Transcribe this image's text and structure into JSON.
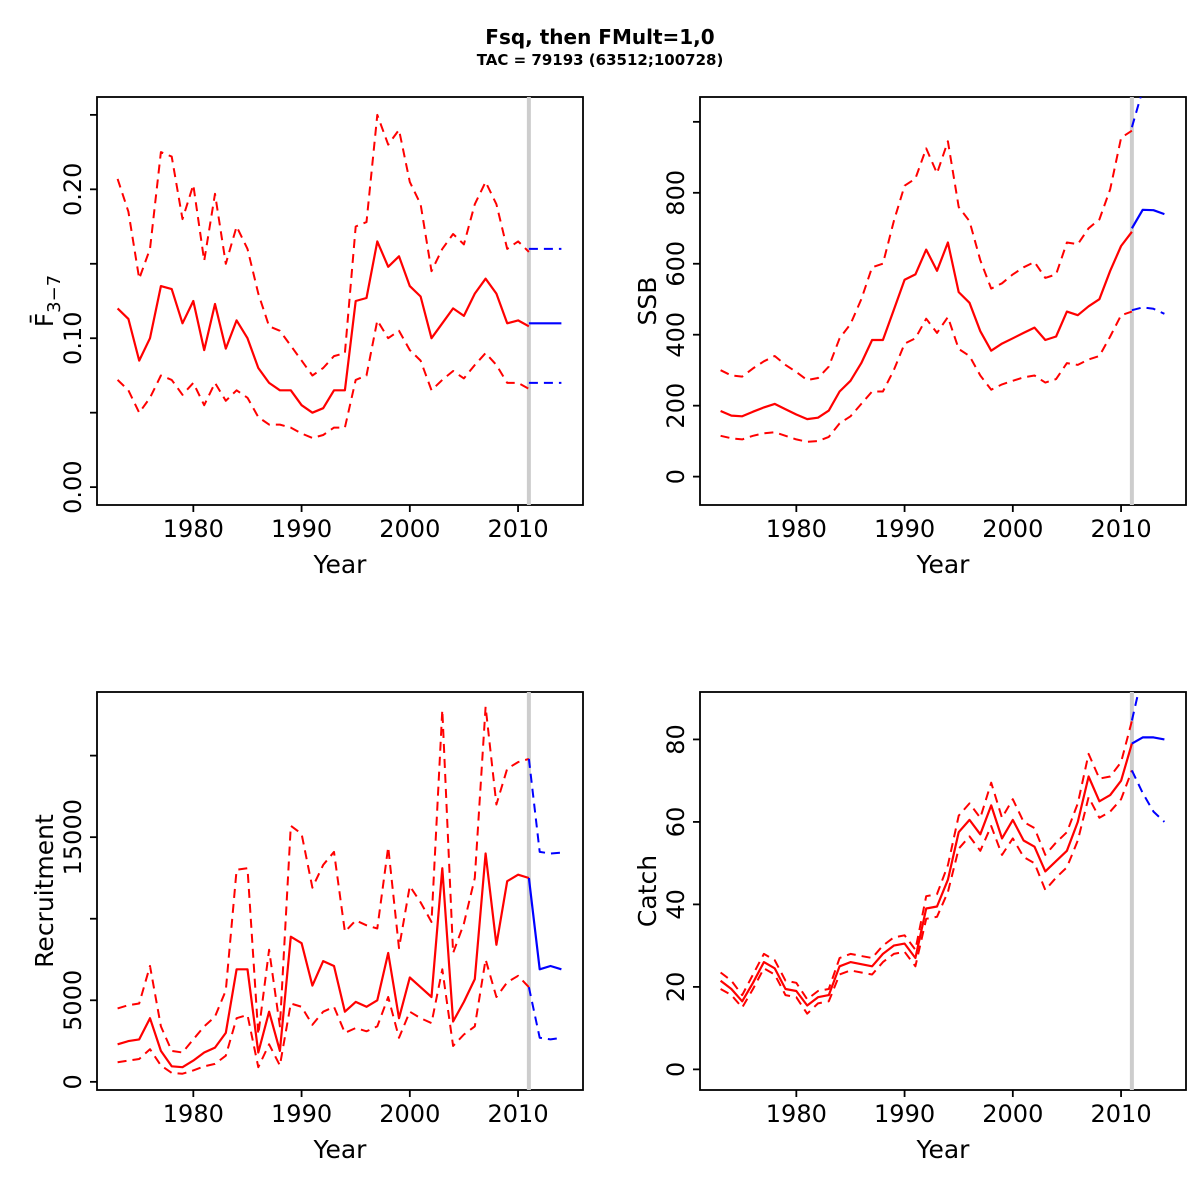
{
  "title": "Fsq, then FMult=1,0",
  "subtitle": "TAC = 79193 (63512;100728)",
  "colors": {
    "historical": "#ff0000",
    "forecast": "#0000ff",
    "divider": "#cdcdcd",
    "axis": "#000000",
    "background": "#ffffff"
  },
  "chart_data": {
    "type": "line",
    "layout": "2x2-grid",
    "grid": "off",
    "legend": "none",
    "forecast_divider_year": 2011,
    "x_years_hist": [
      1973,
      1974,
      1975,
      1976,
      1977,
      1978,
      1979,
      1980,
      1981,
      1982,
      1983,
      1984,
      1985,
      1986,
      1987,
      1988,
      1989,
      1990,
      1991,
      1992,
      1993,
      1994,
      1995,
      1996,
      1997,
      1998,
      1999,
      2000,
      2001,
      2002,
      2003,
      2004,
      2005,
      2006,
      2007,
      2008,
      2009,
      2010,
      2011
    ],
    "x_years_forecast": [
      2011,
      2012,
      2013,
      2014
    ],
    "panels": [
      {
        "id": "fbar",
        "ylabel": {
          "text": "F̄",
          "sub": "3−7"
        },
        "xlabel": "Year",
        "xlim": [
          1971.1,
          2016.0
        ],
        "ylim": [
          -0.012,
          0.262
        ],
        "xticks": [
          {
            "v": 1980,
            "label": "1980"
          },
          {
            "v": 1990,
            "label": "1990"
          },
          {
            "v": 2000,
            "label": "2000"
          },
          {
            "v": 2010,
            "label": "2010"
          }
        ],
        "yticks": [
          {
            "v": 0,
            "label": "0.00"
          },
          {
            "v": 0.05,
            "label": ""
          },
          {
            "v": 0.1,
            "label": "0.10"
          },
          {
            "v": 0.15,
            "label": ""
          },
          {
            "v": 0.2,
            "label": "0.20"
          },
          {
            "v": 0.25,
            "label": ""
          }
        ],
        "series": {
          "hist_median": [
            0.12,
            0.113,
            0.085,
            0.1,
            0.135,
            0.133,
            0.11,
            0.125,
            0.092,
            0.123,
            0.093,
            0.112,
            0.1,
            0.08,
            0.07,
            0.065,
            0.065,
            0.055,
            0.05,
            0.053,
            0.065,
            0.065,
            0.125,
            0.127,
            0.165,
            0.148,
            0.155,
            0.135,
            0.128,
            0.1,
            0.11,
            0.12,
            0.115,
            0.13,
            0.14,
            0.13,
            0.11,
            0.112,
            0.108
          ],
          "hist_upper": [
            0.207,
            0.185,
            0.14,
            0.16,
            0.225,
            0.222,
            0.18,
            0.203,
            0.152,
            0.197,
            0.15,
            0.175,
            0.16,
            0.13,
            0.108,
            0.105,
            0.095,
            0.085,
            0.075,
            0.08,
            0.088,
            0.09,
            0.175,
            0.178,
            0.25,
            0.23,
            0.24,
            0.205,
            0.19,
            0.145,
            0.16,
            0.17,
            0.163,
            0.19,
            0.205,
            0.19,
            0.16,
            0.165,
            0.158
          ],
          "hist_lower": [
            0.072,
            0.065,
            0.05,
            0.06,
            0.075,
            0.072,
            0.062,
            0.07,
            0.055,
            0.07,
            0.058,
            0.065,
            0.06,
            0.047,
            0.042,
            0.042,
            0.04,
            0.036,
            0.033,
            0.035,
            0.04,
            0.04,
            0.072,
            0.075,
            0.112,
            0.1,
            0.105,
            0.092,
            0.085,
            0.065,
            0.072,
            0.078,
            0.073,
            0.082,
            0.09,
            0.082,
            0.07,
            0.07,
            0.066
          ],
          "forecast_median": [
            0.11,
            0.11,
            0.11,
            0.11
          ],
          "forecast_upper": [
            0.16,
            0.16,
            0.16,
            0.16
          ],
          "forecast_lower": [
            0.07,
            0.07,
            0.07,
            0.07
          ]
        }
      },
      {
        "id": "ssb",
        "ylabel": {
          "text": "SSB"
        },
        "xlabel": "Year",
        "xlim": [
          1971.1,
          2016.0
        ],
        "ylim": [
          -80,
          1070
        ],
        "xticks": [
          {
            "v": 1980,
            "label": "1980"
          },
          {
            "v": 1990,
            "label": "1990"
          },
          {
            "v": 2000,
            "label": "2000"
          },
          {
            "v": 2010,
            "label": "2010"
          }
        ],
        "yticks": [
          {
            "v": 0,
            "label": "0"
          },
          {
            "v": 200,
            "label": "200"
          },
          {
            "v": 400,
            "label": "400"
          },
          {
            "v": 600,
            "label": "600"
          },
          {
            "v": 800,
            "label": "800"
          },
          {
            "v": 1000,
            "label": ""
          }
        ],
        "series": {
          "hist_median": [
            185,
            172,
            170,
            183,
            195,
            205,
            190,
            175,
            162,
            166,
            186,
            240,
            270,
            320,
            385,
            385,
            470,
            555,
            570,
            640,
            580,
            660,
            520,
            490,
            410,
            355,
            375,
            390,
            405,
            420,
            385,
            395,
            465,
            455,
            480,
            500,
            580,
            650,
            690
          ],
          "hist_upper": [
            300,
            285,
            282,
            305,
            325,
            340,
            315,
            295,
            272,
            278,
            310,
            390,
            430,
            500,
            590,
            600,
            720,
            820,
            840,
            925,
            855,
            945,
            760,
            720,
            610,
            530,
            545,
            570,
            590,
            605,
            560,
            570,
            660,
            655,
            700,
            725,
            810,
            955,
            975
          ],
          "hist_lower": [
            115,
            108,
            105,
            115,
            122,
            125,
            115,
            105,
            98,
            100,
            112,
            150,
            170,
            205,
            240,
            240,
            300,
            375,
            390,
            445,
            405,
            450,
            360,
            340,
            285,
            245,
            260,
            270,
            280,
            285,
            265,
            275,
            320,
            315,
            330,
            340,
            395,
            455,
            465
          ],
          "forecast_median": [
            700,
            752,
            751,
            740
          ],
          "forecast_upper": [
            985,
            1090,
            1180,
            1260
          ],
          "forecast_lower": [
            469,
            477,
            473,
            459
          ]
        }
      },
      {
        "id": "recruitment",
        "ylabel": {
          "text": "Recruitment"
        },
        "xlabel": "Year",
        "xlim": [
          1971.1,
          2016.0
        ],
        "ylim": [
          -500,
          23900
        ],
        "xticks": [
          {
            "v": 1980,
            "label": "1980"
          },
          {
            "v": 1990,
            "label": "1990"
          },
          {
            "v": 2000,
            "label": "2000"
          },
          {
            "v": 2010,
            "label": "2010"
          }
        ],
        "yticks": [
          {
            "v": 0,
            "label": "0"
          },
          {
            "v": 5000,
            "label": "5000"
          },
          {
            "v": 10000,
            "label": ""
          },
          {
            "v": 15000,
            "label": "15000"
          },
          {
            "v": 20000,
            "label": ""
          }
        ],
        "series": {
          "hist_median": [
            2300,
            2500,
            2600,
            3900,
            1900,
            950,
            900,
            1300,
            1800,
            2100,
            3000,
            6900,
            6900,
            1800,
            4300,
            1900,
            8900,
            8500,
            5900,
            7400,
            7100,
            4300,
            4900,
            4600,
            5000,
            7900,
            3900,
            6400,
            5800,
            5200,
            13100,
            3700,
            4900,
            6300,
            14000,
            8400,
            12300,
            12700,
            12500
          ],
          "hist_upper": [
            4500,
            4700,
            4800,
            7100,
            3400,
            1900,
            1800,
            2600,
            3400,
            4000,
            5600,
            13000,
            13100,
            2900,
            8100,
            3400,
            15700,
            15200,
            11900,
            13300,
            14100,
            9200,
            9900,
            9600,
            9400,
            14400,
            8200,
            12000,
            11000,
            9800,
            22800,
            7900,
            9700,
            12500,
            23000,
            17000,
            19200,
            19600,
            19800
          ],
          "hist_lower": [
            1200,
            1300,
            1400,
            2000,
            1000,
            550,
            500,
            700,
            950,
            1100,
            1600,
            3900,
            4100,
            900,
            2300,
            1000,
            4800,
            4600,
            3500,
            4300,
            4600,
            3000,
            3300,
            3100,
            3400,
            5200,
            2700,
            4300,
            3900,
            3600,
            6900,
            2200,
            2900,
            3400,
            7500,
            5200,
            6100,
            6500,
            5800
          ],
          "forecast_median": [
            12500,
            6900,
            7100,
            6900
          ],
          "forecast_upper": [
            19800,
            14100,
            14000,
            14050
          ],
          "forecast_lower": [
            5800,
            2700,
            2600,
            2700
          ]
        }
      },
      {
        "id": "catch",
        "ylabel": {
          "text": "Catch"
        },
        "xlabel": "Year",
        "xlim": [
          1971.1,
          2016.0
        ],
        "ylim": [
          -5,
          91.5
        ],
        "xticks": [
          {
            "v": 1980,
            "label": "1980"
          },
          {
            "v": 1990,
            "label": "1990"
          },
          {
            "v": 2000,
            "label": "2000"
          },
          {
            "v": 2010,
            "label": "2010"
          }
        ],
        "yticks": [
          {
            "v": 0,
            "label": "0"
          },
          {
            "v": 20,
            "label": "20"
          },
          {
            "v": 40,
            "label": "40"
          },
          {
            "v": 60,
            "label": "60"
          },
          {
            "v": 80,
            "label": "80"
          }
        ],
        "series": {
          "hist_median": [
            21.5,
            19.5,
            16.5,
            21,
            26,
            24.5,
            19.5,
            19,
            15.5,
            17.5,
            18,
            25,
            26,
            25.5,
            25,
            28,
            30,
            30.5,
            27,
            39,
            39.5,
            46,
            57.5,
            60.5,
            57,
            64,
            56,
            60.5,
            55.5,
            54,
            48,
            50.5,
            53,
            60,
            71,
            65,
            66.5,
            70,
            79
          ],
          "hist_upper": [
            23.5,
            21.5,
            18,
            23,
            28,
            26.5,
            21.5,
            21,
            17,
            19,
            19.5,
            27,
            28,
            27.5,
            27,
            30,
            32,
            32.5,
            29,
            42,
            42.5,
            49.5,
            61.5,
            64.5,
            61,
            69.5,
            61,
            65.5,
            60,
            58.5,
            52,
            55,
            57.5,
            64.5,
            76.5,
            70.5,
            71,
            74.5,
            84.5
          ],
          "hist_lower": [
            19.5,
            18,
            15,
            19.5,
            24.5,
            23,
            18,
            17.5,
            13.5,
            16,
            16.5,
            23,
            24,
            23.5,
            23,
            26,
            28,
            28.5,
            25,
            36.5,
            37,
            43,
            53.5,
            56.5,
            53,
            59,
            52,
            56,
            51.5,
            50,
            43.5,
            46.5,
            49,
            55.5,
            66,
            61,
            62.5,
            65.5,
            72.5
          ],
          "forecast_median": [
            79,
            80.5,
            80.5,
            80
          ],
          "forecast_upper": [
            84.6,
            96,
            108,
            118
          ],
          "forecast_lower": [
            72.5,
            67,
            62.5,
            60
          ]
        }
      }
    ]
  }
}
